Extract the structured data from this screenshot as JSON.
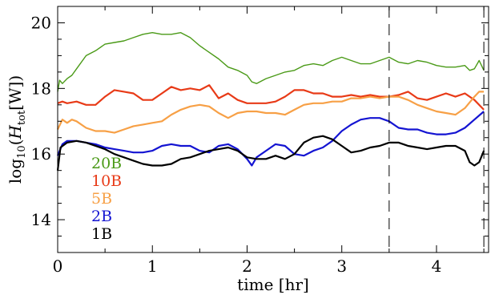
{
  "chart_data": {
    "type": "line",
    "xlabel": "time [hr]",
    "ylabel": {
      "prefix": "log",
      "log_base": "10",
      "open": "(",
      "symbol": "H",
      "subscript": "tot",
      "unit": "[W])"
    },
    "xlim": [
      0,
      4.55
    ],
    "ylim": [
      13,
      20.5
    ],
    "x_ticks": [
      0,
      1,
      2,
      3,
      4
    ],
    "y_ticks": [
      14,
      16,
      18,
      20
    ],
    "grid": false,
    "legend_placement": "lower-left",
    "vlines": [
      3.5,
      4.5
    ],
    "series": [
      {
        "name": "20B",
        "color": "#4a9a17",
        "points": [
          [
            0.0,
            17.9
          ],
          [
            0.02,
            18.25
          ],
          [
            0.05,
            18.15
          ],
          [
            0.1,
            18.3
          ],
          [
            0.15,
            18.4
          ],
          [
            0.2,
            18.6
          ],
          [
            0.3,
            19.0
          ],
          [
            0.4,
            19.15
          ],
          [
            0.5,
            19.35
          ],
          [
            0.6,
            19.4
          ],
          [
            0.7,
            19.45
          ],
          [
            0.8,
            19.55
          ],
          [
            0.9,
            19.65
          ],
          [
            1.0,
            19.7
          ],
          [
            1.1,
            19.65
          ],
          [
            1.2,
            19.65
          ],
          [
            1.3,
            19.7
          ],
          [
            1.4,
            19.55
          ],
          [
            1.5,
            19.3
          ],
          [
            1.6,
            19.1
          ],
          [
            1.7,
            18.9
          ],
          [
            1.8,
            18.65
          ],
          [
            1.9,
            18.55
          ],
          [
            2.0,
            18.4
          ],
          [
            2.05,
            18.2
          ],
          [
            2.1,
            18.15
          ],
          [
            2.2,
            18.3
          ],
          [
            2.3,
            18.4
          ],
          [
            2.4,
            18.5
          ],
          [
            2.5,
            18.55
          ],
          [
            2.6,
            18.7
          ],
          [
            2.7,
            18.75
          ],
          [
            2.8,
            18.7
          ],
          [
            2.9,
            18.85
          ],
          [
            3.0,
            18.95
          ],
          [
            3.1,
            18.85
          ],
          [
            3.2,
            18.75
          ],
          [
            3.3,
            18.75
          ],
          [
            3.4,
            18.85
          ],
          [
            3.5,
            18.95
          ],
          [
            3.6,
            18.8
          ],
          [
            3.7,
            18.75
          ],
          [
            3.8,
            18.85
          ],
          [
            3.9,
            18.8
          ],
          [
            4.0,
            18.7
          ],
          [
            4.1,
            18.65
          ],
          [
            4.2,
            18.65
          ],
          [
            4.3,
            18.7
          ],
          [
            4.35,
            18.55
          ],
          [
            4.4,
            18.6
          ],
          [
            4.45,
            18.85
          ],
          [
            4.5,
            18.55
          ]
        ]
      },
      {
        "name": "10B",
        "color": "#e83a17",
        "points": [
          [
            0.0,
            17.55
          ],
          [
            0.05,
            17.6
          ],
          [
            0.1,
            17.55
          ],
          [
            0.2,
            17.6
          ],
          [
            0.3,
            17.5
          ],
          [
            0.4,
            17.5
          ],
          [
            0.5,
            17.75
          ],
          [
            0.6,
            17.95
          ],
          [
            0.7,
            17.9
          ],
          [
            0.8,
            17.85
          ],
          [
            0.9,
            17.65
          ],
          [
            1.0,
            17.65
          ],
          [
            1.1,
            17.85
          ],
          [
            1.2,
            18.05
          ],
          [
            1.3,
            17.95
          ],
          [
            1.4,
            18.0
          ],
          [
            1.5,
            17.95
          ],
          [
            1.6,
            18.1
          ],
          [
            1.65,
            17.9
          ],
          [
            1.7,
            17.7
          ],
          [
            1.8,
            17.85
          ],
          [
            1.9,
            17.65
          ],
          [
            2.0,
            17.55
          ],
          [
            2.1,
            17.55
          ],
          [
            2.2,
            17.55
          ],
          [
            2.3,
            17.6
          ],
          [
            2.4,
            17.75
          ],
          [
            2.5,
            17.95
          ],
          [
            2.6,
            17.95
          ],
          [
            2.7,
            17.85
          ],
          [
            2.8,
            17.85
          ],
          [
            2.9,
            17.75
          ],
          [
            3.0,
            17.75
          ],
          [
            3.1,
            17.8
          ],
          [
            3.2,
            17.75
          ],
          [
            3.3,
            17.8
          ],
          [
            3.4,
            17.75
          ],
          [
            3.5,
            17.75
          ],
          [
            3.6,
            17.8
          ],
          [
            3.7,
            17.9
          ],
          [
            3.8,
            17.7
          ],
          [
            3.9,
            17.65
          ],
          [
            4.0,
            17.75
          ],
          [
            4.1,
            17.85
          ],
          [
            4.2,
            17.75
          ],
          [
            4.3,
            17.85
          ],
          [
            4.4,
            17.65
          ],
          [
            4.5,
            17.35
          ]
        ]
      },
      {
        "name": "5B",
        "color": "#f7a046",
        "points": [
          [
            0.0,
            16.75
          ],
          [
            0.05,
            17.05
          ],
          [
            0.1,
            16.95
          ],
          [
            0.15,
            17.05
          ],
          [
            0.2,
            17.0
          ],
          [
            0.3,
            16.8
          ],
          [
            0.4,
            16.7
          ],
          [
            0.5,
            16.7
          ],
          [
            0.6,
            16.65
          ],
          [
            0.7,
            16.75
          ],
          [
            0.8,
            16.85
          ],
          [
            0.9,
            16.9
          ],
          [
            1.0,
            16.95
          ],
          [
            1.1,
            17.0
          ],
          [
            1.2,
            17.2
          ],
          [
            1.3,
            17.35
          ],
          [
            1.4,
            17.45
          ],
          [
            1.5,
            17.5
          ],
          [
            1.6,
            17.45
          ],
          [
            1.7,
            17.25
          ],
          [
            1.8,
            17.1
          ],
          [
            1.9,
            17.25
          ],
          [
            2.0,
            17.3
          ],
          [
            2.1,
            17.3
          ],
          [
            2.2,
            17.25
          ],
          [
            2.3,
            17.25
          ],
          [
            2.4,
            17.2
          ],
          [
            2.5,
            17.35
          ],
          [
            2.6,
            17.5
          ],
          [
            2.7,
            17.55
          ],
          [
            2.8,
            17.55
          ],
          [
            2.9,
            17.6
          ],
          [
            3.0,
            17.6
          ],
          [
            3.1,
            17.7
          ],
          [
            3.2,
            17.7
          ],
          [
            3.3,
            17.75
          ],
          [
            3.4,
            17.7
          ],
          [
            3.5,
            17.75
          ],
          [
            3.6,
            17.75
          ],
          [
            3.7,
            17.65
          ],
          [
            3.8,
            17.5
          ],
          [
            3.9,
            17.4
          ],
          [
            4.0,
            17.3
          ],
          [
            4.1,
            17.25
          ],
          [
            4.2,
            17.2
          ],
          [
            4.3,
            17.4
          ],
          [
            4.4,
            17.75
          ],
          [
            4.45,
            17.9
          ],
          [
            4.5,
            17.9
          ]
        ]
      },
      {
        "name": "2B",
        "color": "#1414d2",
        "points": [
          [
            0.0,
            15.95
          ],
          [
            0.05,
            16.3
          ],
          [
            0.1,
            16.4
          ],
          [
            0.2,
            16.4
          ],
          [
            0.3,
            16.35
          ],
          [
            0.4,
            16.3
          ],
          [
            0.5,
            16.2
          ],
          [
            0.6,
            16.15
          ],
          [
            0.7,
            16.1
          ],
          [
            0.8,
            16.05
          ],
          [
            0.9,
            16.05
          ],
          [
            1.0,
            16.1
          ],
          [
            1.1,
            16.25
          ],
          [
            1.2,
            16.3
          ],
          [
            1.3,
            16.25
          ],
          [
            1.4,
            16.25
          ],
          [
            1.5,
            16.1
          ],
          [
            1.6,
            16.05
          ],
          [
            1.7,
            16.25
          ],
          [
            1.8,
            16.3
          ],
          [
            1.9,
            16.15
          ],
          [
            2.0,
            15.85
          ],
          [
            2.05,
            15.65
          ],
          [
            2.1,
            15.9
          ],
          [
            2.2,
            16.1
          ],
          [
            2.3,
            16.3
          ],
          [
            2.4,
            16.25
          ],
          [
            2.5,
            16.0
          ],
          [
            2.6,
            15.95
          ],
          [
            2.7,
            16.1
          ],
          [
            2.8,
            16.2
          ],
          [
            2.9,
            16.4
          ],
          [
            3.0,
            16.7
          ],
          [
            3.1,
            16.9
          ],
          [
            3.2,
            17.05
          ],
          [
            3.3,
            17.1
          ],
          [
            3.4,
            17.1
          ],
          [
            3.5,
            17.0
          ],
          [
            3.6,
            16.8
          ],
          [
            3.7,
            16.75
          ],
          [
            3.8,
            16.75
          ],
          [
            3.9,
            16.65
          ],
          [
            4.0,
            16.6
          ],
          [
            4.1,
            16.6
          ],
          [
            4.2,
            16.65
          ],
          [
            4.3,
            16.8
          ],
          [
            4.4,
            17.05
          ],
          [
            4.5,
            17.3
          ]
        ]
      },
      {
        "name": "1B",
        "color": "#000000",
        "points": [
          [
            0.0,
            15.5
          ],
          [
            0.03,
            16.2
          ],
          [
            0.1,
            16.35
          ],
          [
            0.2,
            16.4
          ],
          [
            0.3,
            16.35
          ],
          [
            0.4,
            16.25
          ],
          [
            0.5,
            16.15
          ],
          [
            0.6,
            16.0
          ],
          [
            0.7,
            15.9
          ],
          [
            0.8,
            15.8
          ],
          [
            0.9,
            15.7
          ],
          [
            1.0,
            15.65
          ],
          [
            1.1,
            15.65
          ],
          [
            1.2,
            15.7
          ],
          [
            1.3,
            15.85
          ],
          [
            1.4,
            15.9
          ],
          [
            1.5,
            16.0
          ],
          [
            1.6,
            16.1
          ],
          [
            1.7,
            16.15
          ],
          [
            1.8,
            16.2
          ],
          [
            1.9,
            16.1
          ],
          [
            2.0,
            15.9
          ],
          [
            2.1,
            15.85
          ],
          [
            2.2,
            15.85
          ],
          [
            2.3,
            15.95
          ],
          [
            2.4,
            15.85
          ],
          [
            2.5,
            16.0
          ],
          [
            2.6,
            16.35
          ],
          [
            2.7,
            16.5
          ],
          [
            2.8,
            16.55
          ],
          [
            2.9,
            16.45
          ],
          [
            3.0,
            16.25
          ],
          [
            3.1,
            16.05
          ],
          [
            3.2,
            16.1
          ],
          [
            3.3,
            16.2
          ],
          [
            3.4,
            16.25
          ],
          [
            3.5,
            16.35
          ],
          [
            3.6,
            16.35
          ],
          [
            3.7,
            16.25
          ],
          [
            3.8,
            16.2
          ],
          [
            3.9,
            16.15
          ],
          [
            4.0,
            16.2
          ],
          [
            4.1,
            16.25
          ],
          [
            4.2,
            16.25
          ],
          [
            4.3,
            16.1
          ],
          [
            4.35,
            15.75
          ],
          [
            4.4,
            15.65
          ],
          [
            4.45,
            15.75
          ],
          [
            4.5,
            16.1
          ]
        ]
      }
    ]
  }
}
